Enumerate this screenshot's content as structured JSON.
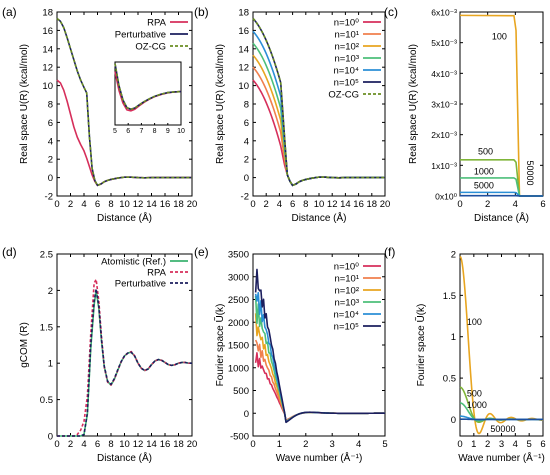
{
  "chart_data": [
    {
      "panel": "(a)",
      "type": "line",
      "xlabel": "Distance (Å)",
      "ylabel": "Real space U(R) (kcal/mol)",
      "xlim": [
        0,
        20
      ],
      "ylim": [
        -2,
        18
      ],
      "xticks": [
        "0",
        "2",
        "4",
        "6",
        "8",
        "10",
        "12",
        "14",
        "16",
        "18",
        "20"
      ],
      "yticks": [
        "-2",
        "0",
        "2",
        "4",
        "6",
        "8",
        "10",
        "12",
        "14",
        "16",
        "18"
      ],
      "series": [
        {
          "name": "RPA",
          "color": "#d62f5b",
          "dash": "solid",
          "x": [
            0,
            0.5,
            1,
            1.5,
            2,
            2.5,
            3,
            3.5,
            4,
            4.4,
            4.8,
            5.2,
            5.6,
            6,
            6.5,
            7,
            7.5,
            8,
            9,
            10,
            11,
            12,
            13,
            14,
            16,
            18,
            20
          ],
          "y": [
            10.6,
            10.3,
            9.5,
            8.3,
            6.9,
            5.5,
            4.4,
            3.6,
            2.9,
            2.1,
            1.2,
            0.3,
            -0.4,
            -0.85,
            -0.7,
            -0.45,
            -0.3,
            -0.2,
            -0.05,
            0.05,
            0.05,
            0.0,
            -0.02,
            0,
            0,
            0,
            0
          ]
        },
        {
          "name": "Perturbative",
          "color": "#1c1f5e",
          "dash": "solid",
          "x": [
            0,
            0.5,
            1,
            1.5,
            2,
            2.5,
            3,
            3.5,
            4,
            4.4,
            4.8,
            5.2,
            5.6,
            6,
            6.5,
            7,
            7.5,
            8,
            9,
            10,
            11,
            12,
            13,
            14,
            16,
            18,
            20
          ],
          "y": [
            17.3,
            17.0,
            16.3,
            15.2,
            14.0,
            12.8,
            11.6,
            10.6,
            9.8,
            9.2,
            4.5,
            1.0,
            -0.3,
            -0.85,
            -0.7,
            -0.45,
            -0.3,
            -0.2,
            -0.05,
            0.05,
            0.05,
            0.0,
            -0.02,
            0,
            0,
            0,
            0
          ]
        },
        {
          "name": "OZ-CG",
          "color": "#6b8e23",
          "dash": "dashed",
          "x": [
            0,
            0.5,
            1,
            1.5,
            2,
            2.5,
            3,
            3.5,
            4,
            4.4,
            4.8,
            5.2,
            5.6,
            6,
            6.5,
            7,
            7.5,
            8,
            9,
            10,
            11,
            12,
            13,
            14,
            16,
            18,
            20
          ],
          "y": [
            17.3,
            17.0,
            16.3,
            15.2,
            14.0,
            12.8,
            11.6,
            10.6,
            9.8,
            9.2,
            4.5,
            1.0,
            -0.3,
            -0.85,
            -0.7,
            -0.45,
            -0.3,
            -0.2,
            -0.05,
            0.05,
            0.05,
            0.0,
            -0.02,
            0,
            0,
            0,
            0
          ]
        }
      ],
      "inset": {
        "xlim": [
          5,
          10
        ],
        "ylim": [
          -1.0,
          1.0
        ],
        "xticks": [
          "5",
          "6",
          "7",
          "8",
          "9",
          "10"
        ],
        "series": [
          {
            "name": "RPA",
            "color": "#d62f5b",
            "dash": "solid",
            "x": [
              5,
              5.3,
              5.6,
              5.9,
              6.2,
              6.5,
              6.8,
              7.2,
              7.6,
              8,
              8.5,
              9,
              9.5,
              10
            ],
            "y": [
              0.7,
              0.1,
              -0.3,
              -0.52,
              -0.55,
              -0.5,
              -0.4,
              -0.28,
              -0.18,
              -0.1,
              -0.03,
              0.02,
              0.05,
              0.06
            ]
          },
          {
            "name": "Perturbative",
            "color": "#1c1f5e",
            "dash": "solid",
            "x": [
              5,
              5.3,
              5.6,
              5.9,
              6.2,
              6.5,
              6.8,
              7.2,
              7.6,
              8,
              8.5,
              9,
              9.5,
              10
            ],
            "y": [
              0.95,
              0.25,
              -0.2,
              -0.45,
              -0.5,
              -0.46,
              -0.37,
              -0.26,
              -0.17,
              -0.09,
              -0.02,
              0.03,
              0.05,
              0.06
            ]
          },
          {
            "name": "OZ-CG",
            "color": "#6b8e23",
            "dash": "dashed",
            "x": [
              5,
              5.3,
              5.6,
              5.9,
              6.2,
              6.5,
              6.8,
              7.2,
              7.6,
              8,
              8.5,
              9,
              9.5,
              10
            ],
            "y": [
              0.95,
              0.25,
              -0.2,
              -0.45,
              -0.5,
              -0.46,
              -0.37,
              -0.26,
              -0.17,
              -0.09,
              -0.02,
              0.03,
              0.05,
              0.06
            ]
          }
        ]
      }
    },
    {
      "panel": "(b)",
      "type": "line",
      "xlabel": "Distance (Å)",
      "ylabel": "Real space U(R) (kcal/mol)",
      "xlim": [
        0,
        20
      ],
      "ylim": [
        -2,
        18
      ],
      "xticks": [
        "0",
        "2",
        "4",
        "6",
        "8",
        "10",
        "12",
        "14",
        "16",
        "18",
        "20"
      ],
      "yticks": [
        "-2",
        "0",
        "2",
        "4",
        "6",
        "8",
        "10",
        "12",
        "14",
        "16",
        "18"
      ],
      "series": [
        {
          "name": "n=10⁰",
          "color": "#d62f5b",
          "dash": "solid",
          "y0": 10.6,
          "ycut": 2.9
        },
        {
          "name": "n=10¹",
          "color": "#f07f4d",
          "dash": "solid",
          "y0": 12.0,
          "ycut": 4.4
        },
        {
          "name": "n=10²",
          "color": "#e8a520",
          "dash": "solid",
          "y0": 13.3,
          "ycut": 5.7
        },
        {
          "name": "n=10³",
          "color": "#4dbf7a",
          "dash": "solid",
          "y0": 14.6,
          "ycut": 7.0
        },
        {
          "name": "n=10⁴",
          "color": "#2b8fd6",
          "dash": "solid",
          "y0": 15.9,
          "ycut": 8.3
        },
        {
          "name": "n=10⁵",
          "color": "#1c1f5e",
          "dash": "solid",
          "y0": 17.3,
          "ycut": 9.8
        },
        {
          "name": "OZ-CG",
          "color": "#6b8e23",
          "dash": "dashed",
          "y0": 17.3,
          "ycut": 9.8
        }
      ]
    },
    {
      "panel": "(c)",
      "type": "line",
      "xlabel": "Distance (Å)",
      "ylabel": "Real space U(R) (kcal/mol)",
      "xlim": [
        0,
        6
      ],
      "ylim": [
        0,
        0.006
      ],
      "xticks": [
        "0",
        "2",
        "4",
        "6"
      ],
      "series": [
        {
          "name": "100",
          "color": "#e8a520",
          "x": [
            0,
            3.9,
            4.05,
            4.3,
            6
          ],
          "y": [
            0.00589,
            0.00588,
            0.0054,
            0.0,
            0.0
          ]
        },
        {
          "name": "500",
          "color": "#7fb539",
          "x": [
            0,
            3.9,
            4.05,
            4.3,
            6
          ],
          "y": [
            0.00118,
            0.00118,
            0.0011,
            0.0,
            0.0
          ]
        },
        {
          "name": "1000",
          "color": "#4dbf7a",
          "x": [
            0,
            3.9,
            4.05,
            4.3,
            6
          ],
          "y": [
            0.00059,
            0.00059,
            0.00055,
            0.0,
            0.0
          ]
        },
        {
          "name": "5000",
          "color": "#2b8fd6",
          "x": [
            0,
            3.9,
            4.05,
            4.3,
            6
          ],
          "y": [
            0.000118,
            0.000118,
            0.00011,
            0.0,
            0.0
          ]
        },
        {
          "name": "50000",
          "color": "#1c4fa0",
          "x": [
            0,
            3.9,
            4.05,
            4.3,
            6
          ],
          "y": [
            1.18e-05,
            1.18e-05,
            1e-05,
            0.0,
            0.0
          ]
        }
      ],
      "annotations": [
        "100",
        "500",
        "1000",
        "5000",
        "50000"
      ]
    },
    {
      "panel": "(d)",
      "type": "line",
      "xlabel": "Distance (Å)",
      "ylabel": "gCOM (R)",
      "xlim": [
        0,
        20
      ],
      "ylim": [
        0,
        2.5
      ],
      "xticks": [
        "0",
        "2",
        "4",
        "6",
        "8",
        "10",
        "12",
        "14",
        "16",
        "18",
        "20"
      ],
      "yticks": [
        "0",
        "0.5",
        "1",
        "1.5",
        "2",
        "2.5"
      ],
      "series": [
        {
          "name": "Atomistic (Ref.)",
          "color": "#3cb371",
          "dash": "solid",
          "x": [
            0,
            3.5,
            4,
            4.5,
            5,
            5.5,
            5.8,
            6.2,
            6.6,
            7,
            7.5,
            8,
            8.5,
            9,
            9.5,
            10,
            10.5,
            11,
            11.5,
            12,
            12.5,
            13,
            13.5,
            14,
            14.5,
            15,
            15.5,
            16,
            16.5,
            17,
            17.5,
            18,
            18.5,
            19,
            19.5,
            20
          ],
          "y": [
            0,
            0,
            0.02,
            0.3,
            1.2,
            1.8,
            2.0,
            1.75,
            1.3,
            0.95,
            0.75,
            0.7,
            0.78,
            0.9,
            1.02,
            1.1,
            1.14,
            1.15,
            1.1,
            1.0,
            0.93,
            0.9,
            0.92,
            0.98,
            1.03,
            1.05,
            1.04,
            1.01,
            0.98,
            0.97,
            0.98,
            1.0,
            1.01,
            1.01,
            1.0,
            1.0
          ]
        },
        {
          "name": "RPA",
          "color": "#d62f5b",
          "dash": "dashed",
          "x": [
            0,
            2.5,
            3,
            3.5,
            4,
            4.5,
            5,
            5.5,
            5.8,
            6.2,
            6.6,
            7,
            7.5,
            8,
            8.5,
            9,
            9.5,
            10,
            10.5,
            11,
            11.5,
            12,
            12.5,
            13,
            13.5,
            14,
            14.5,
            15,
            15.5,
            16,
            16.5,
            17,
            17.5,
            18,
            18.5,
            19,
            19.5,
            20
          ],
          "y": [
            0,
            0,
            0.02,
            0.08,
            0.2,
            0.55,
            1.4,
            2.1,
            2.15,
            1.85,
            1.35,
            0.95,
            0.74,
            0.7,
            0.78,
            0.9,
            1.02,
            1.1,
            1.14,
            1.16,
            1.1,
            1.0,
            0.93,
            0.9,
            0.92,
            0.98,
            1.03,
            1.05,
            1.04,
            1.01,
            0.98,
            0.97,
            0.98,
            1.0,
            1.01,
            1.01,
            1.0,
            1.0
          ]
        },
        {
          "name": "Perturbative",
          "color": "#1c1f5e",
          "dash": "dashed",
          "x": [
            0,
            3.5,
            4,
            4.5,
            5,
            5.5,
            5.8,
            6.2,
            6.6,
            7,
            7.5,
            8,
            8.5,
            9,
            9.5,
            10,
            10.5,
            11,
            11.5,
            12,
            12.5,
            13,
            13.5,
            14,
            14.5,
            15,
            15.5,
            16,
            16.5,
            17,
            17.5,
            18,
            18.5,
            19,
            19.5,
            20
          ],
          "y": [
            0,
            0,
            0.02,
            0.32,
            1.25,
            1.85,
            2.02,
            1.78,
            1.32,
            0.96,
            0.75,
            0.71,
            0.79,
            0.91,
            1.02,
            1.1,
            1.14,
            1.15,
            1.1,
            1.0,
            0.93,
            0.9,
            0.92,
            0.98,
            1.03,
            1.05,
            1.04,
            1.01,
            0.98,
            0.97,
            0.98,
            1.0,
            1.01,
            1.01,
            1.0,
            1.0
          ]
        }
      ]
    },
    {
      "panel": "(e)",
      "type": "line",
      "xlabel": "Wave number (Å⁻¹)",
      "ylabel": "Fourier space Ũ(k)",
      "xlim": [
        0,
        5
      ],
      "ylim": [
        -500,
        3500
      ],
      "xticks": [
        "0",
        "1",
        "2",
        "3",
        "4",
        "5"
      ],
      "yticks": [
        "-500",
        "0",
        "500",
        "1000",
        "1500",
        "2000",
        "2500",
        "3000",
        "3500"
      ],
      "series": [
        {
          "name": "n=10⁰",
          "color": "#d62f5b",
          "amp": 1300
        },
        {
          "name": "n=10¹",
          "color": "#f07f4d",
          "amp": 1650
        },
        {
          "name": "n=10²",
          "color": "#e8a520",
          "amp": 2050
        },
        {
          "name": "n=10³",
          "color": "#4dbf7a",
          "amp": 2450
        },
        {
          "name": "n=10⁴",
          "color": "#2b8fd6",
          "amp": 2800
        },
        {
          "name": "n=10⁵",
          "color": "#1c1f5e",
          "amp": 3200
        }
      ]
    },
    {
      "panel": "(f)",
      "type": "line",
      "xlabel": "Wave number (Å⁻¹)",
      "ylabel": "Fourier space Ũ(k)",
      "xlim": [
        0,
        6
      ],
      "ylim": [
        -0.2,
        2.0
      ],
      "xticks": [
        "0",
        "1",
        "2",
        "3",
        "4",
        "5",
        "6"
      ],
      "yticks": [
        "0",
        "0.5",
        "1",
        "1.5",
        "2"
      ],
      "series": [
        {
          "name": "100",
          "color": "#e8a520",
          "amp": 1.97
        },
        {
          "name": "500",
          "color": "#7fb539",
          "amp": 0.39
        },
        {
          "name": "1000",
          "color": "#4dbf7a",
          "amp": 0.2
        },
        {
          "name": "5000",
          "color": "#2b8fd6",
          "amp": 0.04
        },
        {
          "name": "50000",
          "color": "#1c4fa0",
          "amp": 0.004
        }
      ],
      "annotations": [
        "100",
        "500",
        "1000",
        "50000"
      ]
    }
  ],
  "labels": {
    "a": "(a)",
    "b": "(b)",
    "c": "(c)",
    "d": "(d)",
    "e": "(e)",
    "f": "(f)",
    "c_zero": "0x10⁰",
    "c_t1": "1x10⁻³",
    "c_t2": "2x10⁻³",
    "c_t3": "3x10⁻³",
    "c_t4": "4x10⁻³",
    "c_t5": "5x10⁻³",
    "c_t6": "6x10⁻³",
    "f_neg": "0"
  }
}
